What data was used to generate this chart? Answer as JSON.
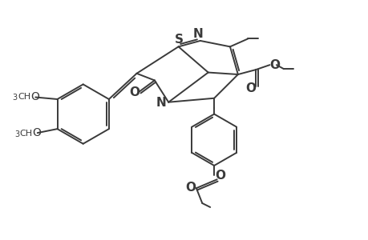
{
  "bg_color": "#ffffff",
  "line_color": "#3a3a3a",
  "line_width": 1.4,
  "font_size": 9,
  "figsize": [
    4.6,
    3.0
  ],
  "dpi": 100,
  "xlim": [
    0,
    9.2
  ],
  "ylim": [
    0,
    6.0
  ]
}
